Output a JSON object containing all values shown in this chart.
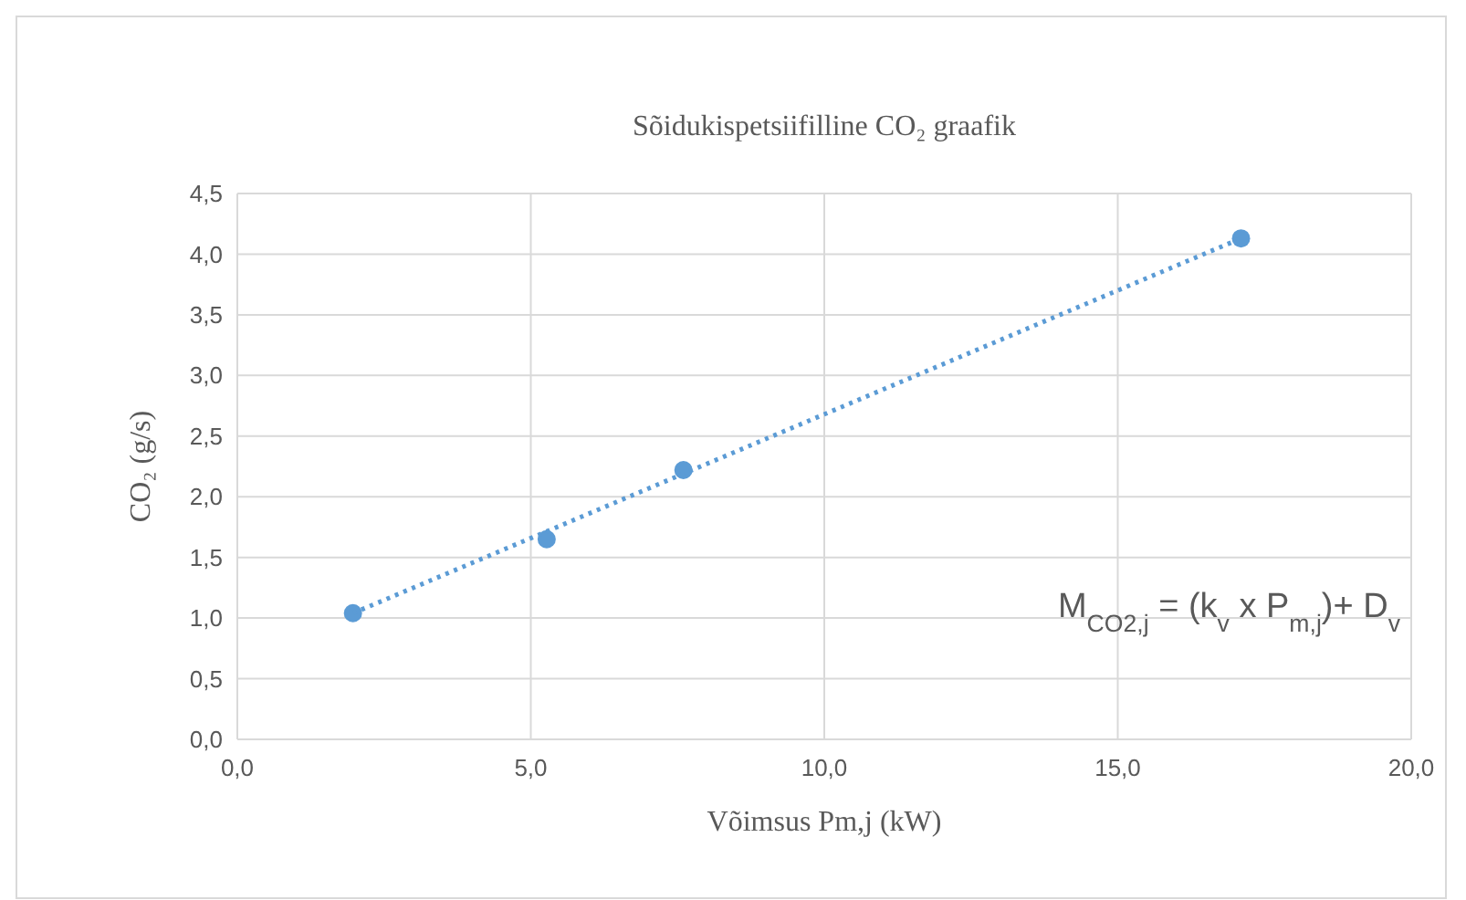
{
  "chart_data": {
    "type": "scatter",
    "title": "Sõidukispetsiifilline CO₂ graafik",
    "xlabel": "Võimsus Pm,j (kW)",
    "ylabel": "CO₂ (g/s)",
    "x": [
      1.97,
      5.27,
      7.6,
      17.1
    ],
    "series": [
      {
        "color": "#5b9bd5",
        "values": [
          1.04,
          1.65,
          2.22,
          4.13
        ],
        "marker": "circle"
      },
      {
        "type": "line",
        "color": "#5b9bd5",
        "x": [
          1.97,
          17.1
        ],
        "values": [
          1.04,
          4.13
        ],
        "line_style": "dotted",
        "marker": "none"
      }
    ],
    "xlim": [
      0,
      20
    ],
    "xticks": [
      {
        "value": 0,
        "label": "0,0"
      },
      {
        "value": 5,
        "label": "5,0"
      },
      {
        "value": 10,
        "label": "10,0"
      },
      {
        "value": 15,
        "label": "15,0"
      },
      {
        "value": 20,
        "label": "20,0"
      }
    ],
    "ylim": [
      0,
      4.5
    ],
    "yticks": [
      {
        "value": 0,
        "label": "0,0"
      },
      {
        "value": 0.5,
        "label": "0,5"
      },
      {
        "value": 1,
        "label": "1,0"
      },
      {
        "value": 1.5,
        "label": "1,5"
      },
      {
        "value": 2,
        "label": "2,0"
      },
      {
        "value": 2.5,
        "label": "2,5"
      },
      {
        "value": 3,
        "label": "3,0"
      },
      {
        "value": 3.5,
        "label": "3,5"
      },
      {
        "value": 4,
        "label": "4,0"
      },
      {
        "value": 4.5,
        "label": "4,5"
      }
    ],
    "grid": true,
    "annotations": [
      "M$_{CO2,j}$ = (k$_{v}$ x  P$_{m,j}$)+ D$_{v}$"
    ]
  }
}
